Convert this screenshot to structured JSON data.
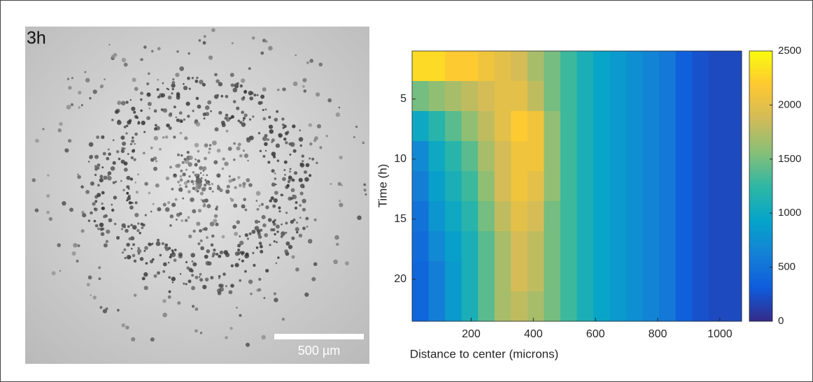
{
  "image_panel": {
    "label": "3h",
    "scale_bar": "500 µm"
  },
  "chart_data": {
    "type": "heatmap",
    "xlabel": "Distance to center (microns)",
    "ylabel": "Time (h)",
    "x_bins": [
      10,
      63,
      116,
      169,
      222,
      275,
      328,
      381,
      434,
      487,
      540,
      593,
      646,
      699,
      752,
      805,
      858,
      911,
      964,
      1017,
      1070
    ],
    "y_bins": [
      1,
      3.5,
      6,
      8.5,
      11,
      13.5,
      16,
      18.5,
      21,
      23.5
    ],
    "z": [
      [
        2300,
        2300,
        2200,
        2200,
        2100,
        2000,
        1900,
        1700,
        1500,
        1300,
        1100,
        950,
        850,
        750,
        650,
        550,
        350,
        250,
        200,
        200
      ],
      [
        1500,
        1600,
        1700,
        1800,
        1900,
        2000,
        2000,
        1800,
        1500,
        1300,
        1100,
        950,
        850,
        750,
        650,
        550,
        350,
        250,
        200,
        200
      ],
      [
        1000,
        1200,
        1400,
        1600,
        1800,
        2000,
        2200,
        2100,
        1600,
        1300,
        1100,
        950,
        850,
        750,
        650,
        550,
        350,
        250,
        200,
        200
      ],
      [
        700,
        1000,
        1200,
        1400,
        1700,
        1900,
        2100,
        2100,
        1600,
        1300,
        1100,
        950,
        850,
        750,
        650,
        550,
        350,
        250,
        200,
        200
      ],
      [
        600,
        900,
        1100,
        1300,
        1600,
        1900,
        2100,
        2000,
        1600,
        1300,
        1100,
        950,
        850,
        750,
        650,
        550,
        350,
        250,
        200,
        200
      ],
      [
        500,
        800,
        1000,
        1200,
        1500,
        1800,
        2000,
        1900,
        1500,
        1300,
        1100,
        950,
        850,
        750,
        650,
        550,
        350,
        250,
        200,
        200
      ],
      [
        450,
        700,
        900,
        1100,
        1400,
        1700,
        1900,
        1800,
        1500,
        1300,
        1100,
        950,
        850,
        750,
        650,
        550,
        350,
        250,
        200,
        200
      ],
      [
        400,
        600,
        850,
        1100,
        1400,
        1700,
        1900,
        1800,
        1500,
        1300,
        1100,
        950,
        850,
        750,
        650,
        550,
        350,
        250,
        200,
        200
      ],
      [
        400,
        600,
        850,
        1100,
        1400,
        1700,
        1800,
        1700,
        1500,
        1300,
        1100,
        950,
        850,
        750,
        650,
        550,
        350,
        250,
        200,
        200
      ]
    ],
    "xlim": [
      10,
      1070
    ],
    "ylim": [
      1,
      23.5
    ],
    "y_reversed": true,
    "xticks": [
      200,
      400,
      600,
      800,
      1000
    ],
    "yticks": [
      5,
      10,
      15,
      20
    ],
    "zlim": [
      0,
      2500
    ],
    "colorbar_ticks": [
      0,
      500,
      1000,
      1500,
      2000,
      2500
    ],
    "colormap": [
      "#352a87",
      "#0f5cdd",
      "#1481d6",
      "#06a4ca",
      "#2eb7a4",
      "#87bf77",
      "#d1bb59",
      "#fec832",
      "#f9fb0e"
    ]
  }
}
